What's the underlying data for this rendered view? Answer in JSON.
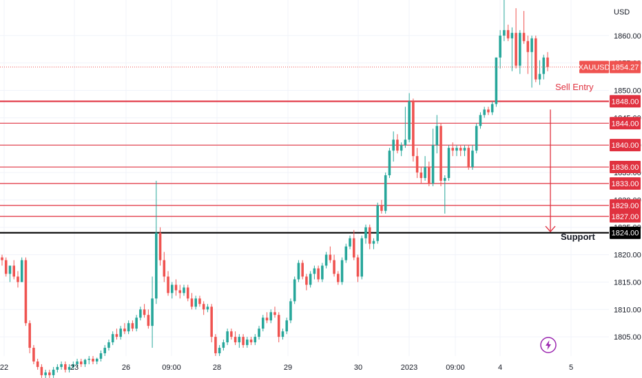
{
  "chart_data": {
    "type": "candlestick",
    "symbol": "XAUUSD",
    "currency_label": "USD",
    "last_price": 1854.27,
    "last_price_label": "1854.27",
    "ylim": [
      1801.5,
      1866.5
    ],
    "y_ticks": [
      1805,
      1810,
      1815,
      1820,
      1825,
      1830,
      1835,
      1840,
      1845,
      1850,
      1855,
      1860
    ],
    "y_tick_labels": [
      "1805.00",
      "1810.00",
      "1815.00",
      "1820.00",
      "1825.00",
      "1830.00",
      "1835.00",
      "1840.00",
      "1845.00",
      "1850.00",
      "1855.00",
      "1860.00"
    ],
    "x_labels": [
      "22",
      "23",
      "26",
      "09:00",
      "28",
      "29",
      "30",
      "2023",
      "09:00",
      "4",
      "5"
    ],
    "grid": true,
    "horizontal_levels": [
      {
        "value": 1848,
        "label": "1848.00",
        "color": "#e0313f",
        "bold": true
      },
      {
        "value": 1844,
        "label": "1844.00",
        "color": "#e0313f",
        "bold": false
      },
      {
        "value": 1840,
        "label": "1840.00",
        "color": "#e0313f",
        "bold": false
      },
      {
        "value": 1836,
        "label": "1836.00",
        "color": "#e0313f",
        "bold": false
      },
      {
        "value": 1833,
        "label": "1833.00",
        "color": "#e0313f",
        "bold": false
      },
      {
        "value": 1829,
        "label": "1829.00",
        "color": "#e0313f",
        "bold": false
      },
      {
        "value": 1827,
        "label": "1827.00",
        "color": "#e0313f",
        "bold": false
      },
      {
        "value": 1824,
        "label": "1824.00",
        "color": "#000000",
        "bold": true
      }
    ],
    "annotations": {
      "sell_entry": {
        "text": "Sell Entry",
        "color": "#e0313f"
      },
      "support": {
        "text": "Support",
        "color": "#131722"
      },
      "arrow_from": 1846.5,
      "arrow_to": 1824.2
    },
    "candles": [
      [
        1819.5,
        1820.0,
        1818.0,
        1819.0
      ],
      [
        1819.0,
        1819.5,
        1816.0,
        1816.5
      ],
      [
        1816.5,
        1818.0,
        1815.0,
        1818.0
      ],
      [
        1818.0,
        1819.0,
        1815.5,
        1816.0
      ],
      [
        1816.0,
        1817.0,
        1814.0,
        1815.0
      ],
      [
        1815.0,
        1819.5,
        1815.0,
        1819.0
      ],
      [
        1819.0,
        1819.5,
        1807.0,
        1807.5
      ],
      [
        1807.5,
        1808.0,
        1802.0,
        1803.0
      ],
      [
        1803.0,
        1803.5,
        1800.0,
        1800.5
      ],
      [
        1800.5,
        1801.0,
        1799.0,
        1799.5
      ],
      [
        1799.5,
        1800.0,
        1797.5,
        1798.0
      ],
      [
        1798.0,
        1799.0,
        1797.0,
        1798.5
      ],
      [
        1798.5,
        1799.0,
        1797.5,
        1798.0
      ],
      [
        1798.0,
        1799.5,
        1797.5,
        1799.0
      ],
      [
        1799.0,
        1800.0,
        1798.5,
        1799.5
      ],
      [
        1799.5,
        1800.5,
        1799.0,
        1800.0
      ],
      [
        1800.0,
        1800.5,
        1798.5,
        1799.0
      ],
      [
        1799.0,
        1800.0,
        1798.5,
        1799.5
      ],
      [
        1799.5,
        1800.5,
        1799.0,
        1800.0
      ],
      [
        1800.0,
        1801.0,
        1799.5,
        1800.5
      ],
      [
        1800.5,
        1801.0,
        1799.5,
        1800.0
      ],
      [
        1800.0,
        1801.0,
        1799.5,
        1800.8
      ],
      [
        1800.8,
        1801.5,
        1800.0,
        1801.0
      ],
      [
        1801.0,
        1801.5,
        1800.0,
        1800.5
      ],
      [
        1800.5,
        1801.2,
        1800.0,
        1801.0
      ],
      [
        1801.0,
        1802.5,
        1800.5,
        1802.0
      ],
      [
        1802.0,
        1803.5,
        1801.5,
        1803.0
      ],
      [
        1803.0,
        1804.5,
        1802.5,
        1804.0
      ],
      [
        1804.0,
        1806.0,
        1803.5,
        1805.5
      ],
      [
        1805.5,
        1806.5,
        1804.5,
        1805.0
      ],
      [
        1805.0,
        1807.0,
        1804.5,
        1806.5
      ],
      [
        1806.5,
        1807.5,
        1805.5,
        1806.0
      ],
      [
        1806.0,
        1808.0,
        1805.5,
        1807.5
      ],
      [
        1807.5,
        1808.0,
        1806.0,
        1806.5
      ],
      [
        1806.5,
        1809.0,
        1806.0,
        1808.5
      ],
      [
        1808.5,
        1810.5,
        1808.0,
        1810.0
      ],
      [
        1810.0,
        1811.0,
        1808.5,
        1809.0
      ],
      [
        1809.0,
        1810.0,
        1806.5,
        1807.0
      ],
      [
        1807.0,
        1816.0,
        1803.0,
        1812.0
      ],
      [
        1812.0,
        1833.5,
        1811.0,
        1824.0
      ],
      [
        1824.0,
        1825.0,
        1818.0,
        1819.0
      ],
      [
        1819.0,
        1820.5,
        1815.0,
        1816.0
      ],
      [
        1816.0,
        1817.0,
        1812.5,
        1813.0
      ],
      [
        1813.0,
        1815.0,
        1812.0,
        1814.5
      ],
      [
        1814.5,
        1815.5,
        1812.5,
        1813.5
      ],
      [
        1813.5,
        1814.5,
        1812.0,
        1813.0
      ],
      [
        1813.0,
        1814.5,
        1812.5,
        1814.0
      ],
      [
        1814.0,
        1814.5,
        1811.5,
        1812.0
      ],
      [
        1812.0,
        1813.0,
        1810.0,
        1810.5
      ],
      [
        1810.5,
        1812.5,
        1810.0,
        1812.0
      ],
      [
        1812.0,
        1812.5,
        1810.5,
        1811.0
      ],
      [
        1811.0,
        1811.5,
        1809.0,
        1810.0
      ],
      [
        1810.0,
        1811.0,
        1809.5,
        1810.5
      ],
      [
        1810.5,
        1811.0,
        1804.0,
        1805.0
      ],
      [
        1805.0,
        1805.5,
        1801.5,
        1802.0
      ],
      [
        1802.0,
        1803.5,
        1801.5,
        1803.0
      ],
      [
        1803.0,
        1804.5,
        1802.5,
        1804.0
      ],
      [
        1804.0,
        1806.5,
        1803.5,
        1806.0
      ],
      [
        1806.0,
        1806.5,
        1804.5,
        1805.0
      ],
      [
        1805.0,
        1806.0,
        1803.5,
        1804.0
      ],
      [
        1804.0,
        1805.5,
        1803.0,
        1805.0
      ],
      [
        1805.0,
        1805.5,
        1803.0,
        1803.5
      ],
      [
        1803.5,
        1805.0,
        1803.0,
        1804.5
      ],
      [
        1804.5,
        1805.0,
        1803.5,
        1804.0
      ],
      [
        1804.0,
        1805.5,
        1803.5,
        1805.0
      ],
      [
        1805.0,
        1807.0,
        1804.5,
        1806.5
      ],
      [
        1806.5,
        1809.0,
        1806.0,
        1808.5
      ],
      [
        1808.5,
        1809.5,
        1807.5,
        1808.0
      ],
      [
        1808.0,
        1810.0,
        1807.5,
        1809.5
      ],
      [
        1809.5,
        1810.5,
        1808.5,
        1809.0
      ],
      [
        1809.0,
        1809.5,
        1804.0,
        1805.0
      ],
      [
        1805.0,
        1806.5,
        1804.5,
        1806.0
      ],
      [
        1806.0,
        1808.5,
        1805.5,
        1808.0
      ],
      [
        1808.0,
        1812.0,
        1807.5,
        1811.5
      ],
      [
        1811.5,
        1816.0,
        1811.0,
        1815.5
      ],
      [
        1815.5,
        1819.0,
        1815.0,
        1818.5
      ],
      [
        1818.5,
        1819.0,
        1815.5,
        1816.0
      ],
      [
        1816.0,
        1816.5,
        1813.5,
        1814.5
      ],
      [
        1814.5,
        1817.0,
        1814.0,
        1816.5
      ],
      [
        1816.5,
        1818.0,
        1815.5,
        1817.5
      ],
      [
        1817.5,
        1818.0,
        1815.0,
        1815.5
      ],
      [
        1815.5,
        1818.5,
        1815.0,
        1818.0
      ],
      [
        1818.0,
        1820.5,
        1817.5,
        1820.0
      ],
      [
        1820.0,
        1821.5,
        1818.5,
        1819.0
      ],
      [
        1819.0,
        1820.0,
        1816.0,
        1816.5
      ],
      [
        1816.5,
        1817.0,
        1814.5,
        1815.0
      ],
      [
        1815.0,
        1819.5,
        1814.5,
        1819.0
      ],
      [
        1819.0,
        1822.0,
        1818.5,
        1821.5
      ],
      [
        1821.5,
        1823.5,
        1821.0,
        1823.0
      ],
      [
        1823.0,
        1824.5,
        1819.0,
        1819.5
      ],
      [
        1819.5,
        1820.0,
        1815.0,
        1816.0
      ],
      [
        1816.0,
        1823.5,
        1815.5,
        1823.0
      ],
      [
        1823.0,
        1825.5,
        1822.0,
        1825.0
      ],
      [
        1825.0,
        1825.5,
        1821.0,
        1822.0
      ],
      [
        1822.0,
        1823.0,
        1821.0,
        1822.5
      ],
      [
        1822.5,
        1829.5,
        1822.0,
        1829.0
      ],
      [
        1829.0,
        1830.0,
        1827.5,
        1828.0
      ],
      [
        1828.0,
        1835.0,
        1827.5,
        1834.5
      ],
      [
        1834.5,
        1839.5,
        1834.0,
        1839.0
      ],
      [
        1839.0,
        1842.5,
        1837.0,
        1841.0
      ],
      [
        1841.0,
        1842.0,
        1838.5,
        1839.0
      ],
      [
        1839.0,
        1840.5,
        1838.0,
        1840.0
      ],
      [
        1840.0,
        1847.0,
        1839.5,
        1841.0
      ],
      [
        1841.0,
        1849.5,
        1840.5,
        1848.0
      ],
      [
        1848.0,
        1848.5,
        1837.0,
        1838.0
      ],
      [
        1838.0,
        1839.5,
        1834.0,
        1835.0
      ],
      [
        1835.0,
        1836.0,
        1833.0,
        1834.0
      ],
      [
        1834.0,
        1838.0,
        1833.5,
        1836.0
      ],
      [
        1836.0,
        1837.0,
        1832.5,
        1833.0
      ],
      [
        1833.0,
        1843.0,
        1832.5,
        1840.0
      ],
      [
        1840.0,
        1845.5,
        1838.5,
        1843.5
      ],
      [
        1843.5,
        1844.0,
        1832.5,
        1833.5
      ],
      [
        1833.5,
        1834.5,
        1827.5,
        1834.0
      ],
      [
        1834.0,
        1840.0,
        1833.5,
        1839.5
      ],
      [
        1839.5,
        1840.5,
        1838.0,
        1839.0
      ],
      [
        1839.0,
        1840.0,
        1838.0,
        1839.5
      ],
      [
        1839.5,
        1840.0,
        1838.0,
        1839.0
      ],
      [
        1839.0,
        1840.0,
        1838.0,
        1839.5
      ],
      [
        1839.5,
        1840.0,
        1835.5,
        1836.0
      ],
      [
        1836.0,
        1840.0,
        1835.5,
        1839.0
      ],
      [
        1839.0,
        1844.0,
        1838.5,
        1843.5
      ],
      [
        1843.5,
        1846.0,
        1843.0,
        1845.5
      ],
      [
        1845.5,
        1847.0,
        1845.0,
        1846.5
      ],
      [
        1846.5,
        1847.0,
        1845.5,
        1846.0
      ],
      [
        1846.0,
        1848.0,
        1845.5,
        1847.5
      ],
      [
        1847.5,
        1856.0,
        1847.0,
        1856.0
      ],
      [
        1856.0,
        1861.0,
        1854.0,
        1860.0
      ],
      [
        1860.0,
        1866.5,
        1859.0,
        1861.0
      ],
      [
        1861.0,
        1862.0,
        1859.0,
        1859.5
      ],
      [
        1859.5,
        1861.5,
        1853.5,
        1860.5
      ],
      [
        1860.5,
        1865.0,
        1854.0,
        1854.5
      ],
      [
        1854.5,
        1861.0,
        1853.0,
        1860.5
      ],
      [
        1860.5,
        1864.5,
        1858.5,
        1859.0
      ],
      [
        1859.0,
        1860.0,
        1853.0,
        1857.0
      ],
      [
        1857.0,
        1860.0,
        1850.5,
        1859.5
      ],
      [
        1859.5,
        1860.0,
        1851.5,
        1852.0
      ],
      [
        1852.0,
        1855.5,
        1851.0,
        1853.0
      ],
      [
        1853.0,
        1856.5,
        1852.0,
        1856.0
      ],
      [
        1856.0,
        1857.0,
        1853.5,
        1854.27
      ]
    ],
    "colors": {
      "up": "#26a69a",
      "down": "#ef5350",
      "grid": "#f0f3fa",
      "last_price_badge": "#ef5350",
      "current_price_line": "#ef5350"
    },
    "logo_icon": "lightning-icon"
  }
}
